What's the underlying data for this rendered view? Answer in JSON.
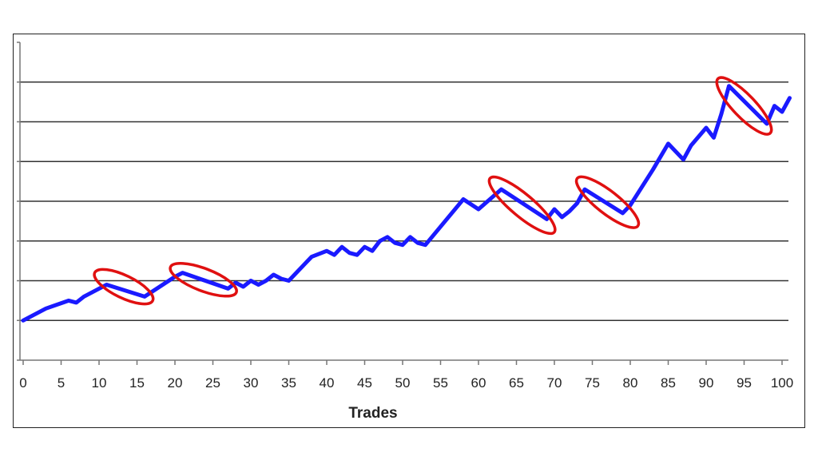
{
  "chart_data": {
    "type": "line",
    "title": "",
    "xlabel": "Trades",
    "ylabel": "",
    "xlim": [
      0,
      100
    ],
    "x_ticks": [
      0,
      5,
      10,
      15,
      20,
      25,
      30,
      35,
      40,
      45,
      50,
      55,
      60,
      65,
      70,
      75,
      80,
      85,
      90,
      95,
      100
    ],
    "ylim": [
      0,
      8
    ],
    "y_gridlines": [
      1,
      2,
      3,
      4,
      5,
      6,
      7
    ],
    "y_tick_labels_shown": false,
    "grid": true,
    "series": [
      {
        "color": "#1a1aff",
        "x": [
          0,
          3,
          6,
          7,
          8,
          10,
          11,
          16,
          20,
          21,
          27,
          28,
          29,
          30,
          31,
          32,
          33,
          34,
          35,
          38,
          40,
          41,
          42,
          43,
          44,
          45,
          46,
          47,
          48,
          49,
          50,
          51,
          52,
          53,
          58,
          60,
          63,
          69,
          70,
          71,
          72,
          73,
          74,
          79,
          80,
          83,
          85,
          87,
          88,
          90,
          91,
          92,
          93,
          98,
          99,
          100,
          101
        ],
        "values": [
          1.0,
          1.3,
          1.5,
          1.45,
          1.6,
          1.8,
          1.9,
          1.6,
          2.1,
          2.2,
          1.8,
          1.95,
          1.85,
          2.0,
          1.9,
          2.0,
          2.15,
          2.05,
          2.0,
          2.6,
          2.75,
          2.65,
          2.85,
          2.7,
          2.65,
          2.85,
          2.75,
          3.0,
          3.1,
          2.95,
          2.9,
          3.1,
          2.95,
          2.9,
          4.05,
          3.8,
          4.3,
          3.55,
          3.8,
          3.6,
          3.75,
          3.95,
          4.3,
          3.7,
          3.9,
          4.8,
          5.45,
          5.05,
          5.4,
          5.85,
          5.6,
          6.2,
          6.9,
          5.95,
          6.4,
          6.25,
          6.6
        ]
      }
    ],
    "annotations": [
      {
        "shape": "ellipse",
        "color": "#e01010",
        "x_range": [
          10,
          16.5
        ],
        "y_range": [
          1.55,
          2.15
        ]
      },
      {
        "shape": "ellipse",
        "color": "#e01010",
        "x_range": [
          20,
          27.5
        ],
        "y_range": [
          1.75,
          2.3
        ]
      },
      {
        "shape": "ellipse",
        "color": "#e01010",
        "x_range": [
          62,
          69.5
        ],
        "y_range": [
          3.3,
          4.5
        ]
      },
      {
        "shape": "ellipse",
        "color": "#e01010",
        "x_range": [
          73.5,
          80.5
        ],
        "y_range": [
          3.45,
          4.5
        ]
      },
      {
        "shape": "ellipse",
        "color": "#e01010",
        "x_range": [
          92,
          98
        ],
        "y_range": [
          5.8,
          7.0
        ]
      }
    ]
  }
}
